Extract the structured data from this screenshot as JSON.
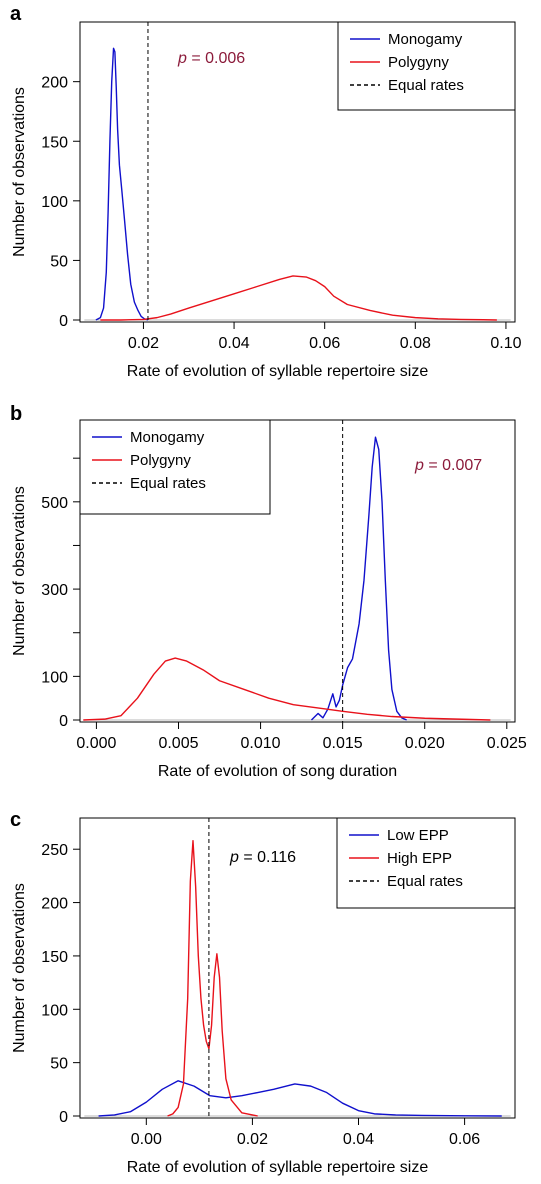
{
  "colors": {
    "blue": "#1010cc",
    "red": "#e8121b",
    "dashed": "#000000",
    "zero_line": "#b8b8b8",
    "pvalue_text": "#8b1a3a"
  },
  "chart_data": [
    {
      "panel": "a",
      "type": "line",
      "xlabel": "Rate of evolution of syllable repertoire size",
      "ylabel": "Number of observations",
      "xlim": [
        0.006,
        0.102
      ],
      "ylim": [
        0,
        240
      ],
      "xticks": [
        "0.02",
        "0.04",
        "0.06",
        "0.08",
        "0.10"
      ],
      "xtick_values": [
        0.02,
        0.04,
        0.06,
        0.08,
        0.1
      ],
      "yticks": [
        "0",
        "50",
        "100",
        "150",
        "200"
      ],
      "ytick_values": [
        0,
        50,
        100,
        150,
        200
      ],
      "equal_rate_line": 0.021,
      "pvalue_label": "p",
      "pvalue_text": " = 0.006",
      "legend": [
        "Monogamy",
        "Polygyny",
        "Equal rates"
      ],
      "legend_position": "top-right",
      "series": [
        {
          "name": "Monogamy",
          "color": "blue",
          "x": [
            0.0095,
            0.0105,
            0.0112,
            0.0118,
            0.0122,
            0.0126,
            0.013,
            0.0134,
            0.0137,
            0.014,
            0.0143,
            0.0147,
            0.0152,
            0.0158,
            0.0165,
            0.0172,
            0.018,
            0.0188,
            0.0195,
            0.0202,
            0.021
          ],
          "y": [
            0,
            2,
            10,
            40,
            90,
            150,
            200,
            228,
            225,
            195,
            160,
            130,
            110,
            85,
            55,
            30,
            15,
            8,
            3,
            1,
            0
          ]
        },
        {
          "name": "Polygyny",
          "color": "red",
          "x": [
            0.0105,
            0.015,
            0.02,
            0.023,
            0.026,
            0.03,
            0.035,
            0.04,
            0.045,
            0.05,
            0.053,
            0.056,
            0.058,
            0.06,
            0.062,
            0.065,
            0.07,
            0.075,
            0.08,
            0.085,
            0.09,
            0.095,
            0.098
          ],
          "y": [
            0,
            0,
            0.5,
            2,
            5,
            10,
            16,
            22,
            28,
            34,
            37,
            36,
            33,
            28,
            20,
            13,
            8,
            4,
            2,
            1,
            0.5,
            0.2,
            0
          ]
        }
      ]
    },
    {
      "panel": "b",
      "type": "line",
      "xlabel": "Rate of evolution of song duration",
      "ylabel": "Number of observations",
      "xlim": [
        -0.001,
        0.0255
      ],
      "ylim": [
        0,
        660
      ],
      "xticks": [
        "0.000",
        "0.005",
        "0.010",
        "0.015",
        "0.020",
        "0.025"
      ],
      "xtick_values": [
        0.0,
        0.005,
        0.01,
        0.015,
        0.02,
        0.025
      ],
      "yticks": [
        "0",
        "100",
        "300",
        "500"
      ],
      "ytick_values": [
        0,
        100,
        300,
        500
      ],
      "extra_tick_values": [
        200,
        400,
        600
      ],
      "equal_rate_line": 0.015,
      "pvalue_label": "p",
      "pvalue_text": " = 0.007",
      "legend": [
        "Monogamy",
        "Polygyny",
        "Equal rates"
      ],
      "legend_position": "top-left",
      "series": [
        {
          "name": "Monogamy",
          "color": "blue",
          "x": [
            0.0131,
            0.0135,
            0.0138,
            0.0141,
            0.0144,
            0.0146,
            0.0148,
            0.015,
            0.0153,
            0.0156,
            0.016,
            0.0163,
            0.0166,
            0.0168,
            0.017,
            0.0172,
            0.0174,
            0.0176,
            0.0178,
            0.018,
            0.0183,
            0.0186,
            0.0189
          ],
          "y": [
            0,
            15,
            5,
            25,
            60,
            30,
            45,
            80,
            120,
            140,
            220,
            320,
            470,
            580,
            648,
            620,
            500,
            320,
            160,
            70,
            20,
            5,
            0
          ]
        },
        {
          "name": "Polygyny",
          "color": "red",
          "x": [
            -0.0008,
            0.0005,
            0.0015,
            0.0025,
            0.0035,
            0.0042,
            0.0048,
            0.0055,
            0.0065,
            0.0075,
            0.009,
            0.0105,
            0.012,
            0.014,
            0.015,
            0.0165,
            0.018,
            0.02,
            0.022,
            0.024
          ],
          "y": [
            0,
            2,
            10,
            50,
            105,
            135,
            142,
            135,
            115,
            90,
            70,
            50,
            35,
            25,
            20,
            13,
            8,
            4,
            2,
            0
          ]
        }
      ]
    },
    {
      "panel": "c",
      "type": "line",
      "xlabel": "Rate of evolution of syllable repertoire size",
      "ylabel": "Number of observations",
      "xlim": [
        -0.0125,
        0.0695
      ],
      "ylim": [
        0,
        268
      ],
      "xticks": [
        "0.00",
        "0.02",
        "0.04",
        "0.06"
      ],
      "xtick_values": [
        0.0,
        0.02,
        0.04,
        0.06
      ],
      "yticks": [
        "0",
        "50",
        "100",
        "150",
        "200",
        "250"
      ],
      "ytick_values": [
        0,
        50,
        100,
        150,
        200,
        250
      ],
      "equal_rate_line": 0.0118,
      "pvalue_label": "p",
      "pvalue_text": " = 0.116",
      "legend": [
        "Low EPP",
        "High EPP",
        "Equal rates"
      ],
      "legend_position": "top-right",
      "series": [
        {
          "name": "Low EPP",
          "color": "blue",
          "x": [
            -0.009,
            -0.006,
            -0.003,
            0.0,
            0.003,
            0.006,
            0.009,
            0.012,
            0.015,
            0.018,
            0.021,
            0.024,
            0.028,
            0.031,
            0.034,
            0.037,
            0.04,
            0.043,
            0.047,
            0.052,
            0.06,
            0.067
          ],
          "y": [
            0,
            1,
            4,
            13,
            25,
            33,
            28,
            19,
            17,
            19,
            22,
            25,
            30,
            28,
            22,
            12,
            5,
            2,
            1,
            0.5,
            0.2,
            0
          ]
        },
        {
          "name": "High EPP",
          "color": "red",
          "x": [
            0.004,
            0.005,
            0.006,
            0.007,
            0.0078,
            0.0083,
            0.0088,
            0.0093,
            0.0098,
            0.0103,
            0.0108,
            0.0113,
            0.0118,
            0.0123,
            0.0128,
            0.0133,
            0.0138,
            0.0143,
            0.015,
            0.016,
            0.018,
            0.02,
            0.021
          ],
          "y": [
            0,
            2,
            8,
            30,
            110,
            220,
            258,
            215,
            150,
            110,
            85,
            70,
            63,
            85,
            130,
            152,
            130,
            80,
            35,
            15,
            3,
            1,
            0
          ]
        }
      ]
    }
  ]
}
